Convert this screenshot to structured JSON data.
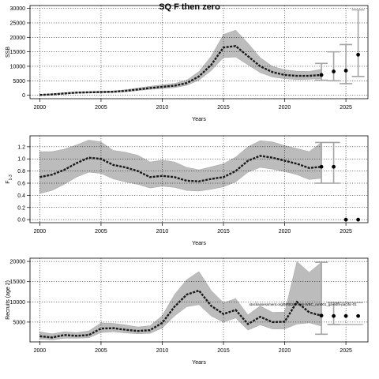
{
  "title": "SQ F then zero",
  "chart_data": [
    {
      "type": "line",
      "xlabel": "Years",
      "ylabel": "SSB",
      "xlim": [
        1999.2,
        2026.8
      ],
      "ylim": [
        -1200,
        31000
      ],
      "xticks": [
        2000,
        2005,
        2010,
        2015,
        2020,
        2025
      ],
      "yticks": [
        0,
        5000,
        10000,
        15000,
        20000,
        25000,
        30000
      ],
      "grid": true,
      "historical": {
        "x": [
          2000,
          2001,
          2002,
          2003,
          2004,
          2005,
          2006,
          2007,
          2008,
          2009,
          2010,
          2011,
          2012,
          2013,
          2014,
          2015,
          2016,
          2017,
          2018,
          2019,
          2020,
          2021,
          2022,
          2023
        ],
        "median": [
          100,
          300,
          600,
          900,
          1000,
          1100,
          1200,
          1500,
          2000,
          2500,
          2900,
          3300,
          4200,
          6500,
          10500,
          16500,
          17000,
          13500,
          10000,
          8000,
          7000,
          6700,
          6700,
          7000
        ],
        "lower": [
          0,
          100,
          400,
          700,
          800,
          850,
          900,
          1200,
          1600,
          2000,
          2300,
          2600,
          3400,
          5200,
          8500,
          13000,
          13200,
          10500,
          7800,
          6300,
          5700,
          5400,
          5500,
          5700
        ],
        "upper": [
          200,
          500,
          900,
          1200,
          1300,
          1400,
          1500,
          1900,
          2500,
          3100,
          3600,
          4100,
          5200,
          8200,
          13500,
          21000,
          22500,
          18000,
          13000,
          10000,
          8800,
          8300,
          8200,
          9000
        ]
      },
      "projection": {
        "x": [
          2024,
          2025,
          2026
        ],
        "median": [
          8200,
          8500,
          14000
        ],
        "lower": [
          5000,
          4000,
          6500
        ],
        "upper": [
          15000,
          17500,
          29500
        ]
      },
      "interval_2023": {
        "lower": 5200,
        "upper": 11000
      }
    },
    {
      "type": "line",
      "xlabel": "Years",
      "ylabel": "F",
      "ylabel_subscript": "1-3",
      "xlim": [
        1999.2,
        2026.8
      ],
      "ylim": [
        -0.05,
        1.38
      ],
      "xticks": [
        2000,
        2005,
        2010,
        2015,
        2020,
        2025
      ],
      "yticks": [
        0.0,
        0.2,
        0.4,
        0.6,
        0.8,
        1.0,
        1.2
      ],
      "ytick_labels": [
        "0.0",
        "0.2",
        "0.4",
        "0.6",
        "0.8",
        "1.0",
        "1.2"
      ],
      "grid": true,
      "historical": {
        "x": [
          2000,
          2001,
          2002,
          2003,
          2004,
          2005,
          2006,
          2007,
          2008,
          2009,
          2010,
          2011,
          2012,
          2013,
          2014,
          2015,
          2016,
          2017,
          2018,
          2019,
          2020,
          2021,
          2022,
          2023
        ],
        "median": [
          0.7,
          0.74,
          0.82,
          0.93,
          1.02,
          1.0,
          0.9,
          0.86,
          0.8,
          0.7,
          0.72,
          0.7,
          0.64,
          0.63,
          0.67,
          0.7,
          0.8,
          0.97,
          1.05,
          1.02,
          0.97,
          0.92,
          0.85,
          0.87
        ],
        "lower": [
          0.43,
          0.48,
          0.58,
          0.7,
          0.78,
          0.76,
          0.67,
          0.62,
          0.58,
          0.52,
          0.55,
          0.53,
          0.48,
          0.47,
          0.5,
          0.54,
          0.62,
          0.78,
          0.86,
          0.83,
          0.79,
          0.74,
          0.66,
          0.68
        ],
        "upper": [
          1.12,
          1.12,
          1.16,
          1.23,
          1.31,
          1.28,
          1.14,
          1.11,
          1.06,
          0.95,
          0.98,
          0.95,
          0.86,
          0.82,
          0.87,
          0.92,
          1.03,
          1.2,
          1.3,
          1.28,
          1.22,
          1.17,
          1.12,
          1.27
        ]
      },
      "projection": {
        "x": [
          2024,
          2025,
          2026
        ],
        "median": [
          0.87,
          0.0,
          0.0
        ]
      },
      "interval_2023": {
        "lower": 0.6,
        "upper": 1.27
      },
      "interval_2024": {
        "lower": 0.6,
        "upper": 1.27
      }
    },
    {
      "type": "line",
      "xlabel": "Years",
      "ylabel": "Recruits (age 2)",
      "xlim": [
        1999.2,
        2026.8
      ],
      "ylim": [
        100,
        20800
      ],
      "xticks": [
        2000,
        2005,
        2010,
        2015,
        2020,
        2025
      ],
      "yticks": [
        5000,
        10000,
        15000,
        20000
      ],
      "grid": true,
      "annotation": "stockassessment.org/MRB2024_N-WBC_run001_ga-edfs-pacific-01",
      "historical": {
        "x": [
          2000,
          2001,
          2002,
          2003,
          2004,
          2005,
          2006,
          2007,
          2008,
          2009,
          2010,
          2011,
          2012,
          2013,
          2014,
          2015,
          2016,
          2017,
          2018,
          2019,
          2020,
          2021,
          2022,
          2023
        ],
        "median": [
          1500,
          1200,
          1800,
          1600,
          1800,
          3400,
          3500,
          3100,
          2800,
          3000,
          4800,
          8800,
          11800,
          12800,
          9000,
          7000,
          8000,
          4500,
          6300,
          5000,
          5100,
          10000,
          7400,
          6600
        ],
        "lower": [
          800,
          600,
          1000,
          1000,
          1100,
          2400,
          2600,
          2300,
          2100,
          2200,
          3500,
          6500,
          8800,
          9300,
          6500,
          5000,
          6000,
          3000,
          4300,
          3300,
          3300,
          4500,
          4800,
          4000
        ],
        "upper": [
          2600,
          2100,
          2600,
          2400,
          2800,
          4800,
          4700,
          4300,
          3800,
          4100,
          6600,
          11800,
          15500,
          17500,
          12800,
          9800,
          10800,
          6800,
          9000,
          7400,
          7500,
          20000,
          17300,
          19800
        ]
      },
      "projection": {
        "x": [
          2024,
          2025,
          2026
        ],
        "median": [
          6500,
          6500,
          6500
        ]
      },
      "interval_2023": {
        "lower": 2000,
        "upper": 19800
      },
      "interval_2024": {
        "lower": 4400,
        "upper": 9800
      }
    }
  ]
}
